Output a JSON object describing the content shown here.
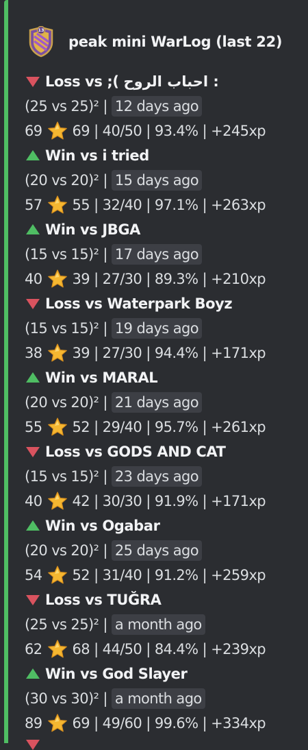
{
  "embed": {
    "accent_color": "#4fbd63",
    "title": "peak mini WarLog (last 22)",
    "badge_icon": "clan-badge-icon",
    "badge_level": "13"
  },
  "colors": {
    "loss": "#d9535f",
    "win": "#4fbd63",
    "time_bg": "#3d3f45",
    "text": "#dbdee1"
  },
  "wars": [
    {
      "result": "loss",
      "headline": "Loss vs ;( احباب الروح :",
      "size": "(25 vs 25)²",
      "sep": "|",
      "time": "12 days ago",
      "left_stars": "69",
      "right": "69 | 40/50 | 93.4% | +245xp"
    },
    {
      "result": "win",
      "headline": "Win vs i tried",
      "size": "(20 vs 20)²",
      "sep": "|",
      "time": "15 days ago",
      "left_stars": "57",
      "right": "55 | 32/40 | 97.1% | +263xp"
    },
    {
      "result": "win",
      "headline": "Win vs JBGA",
      "size": "(15 vs 15)²",
      "sep": "|",
      "time": "17 days ago",
      "left_stars": "40",
      "right": "39 | 27/30 | 89.3% | +210xp"
    },
    {
      "result": "loss",
      "headline": "Loss vs Waterpark Boyz",
      "size": "(15 vs 15)²",
      "sep": "|",
      "time": "19 days ago",
      "left_stars": "38",
      "right": "39 | 27/30 | 94.4% | +171xp"
    },
    {
      "result": "win",
      "headline": "Win vs MARAL",
      "size": "(20 vs 20)²",
      "sep": "|",
      "time": "21 days ago",
      "left_stars": "55",
      "right": "52 | 29/40 | 95.7% | +261xp"
    },
    {
      "result": "loss",
      "headline": "Loss vs GODS AND CAT",
      "size": "(15 vs 15)²",
      "sep": "|",
      "time": "23 days ago",
      "left_stars": "40",
      "right": "42 | 30/30 | 91.9% | +171xp"
    },
    {
      "result": "win",
      "headline": "Win vs Ogabar",
      "size": "(20 vs 20)²",
      "sep": "|",
      "time": "25 days ago",
      "left_stars": "54",
      "right": "52 | 31/40 | 91.2% | +259xp"
    },
    {
      "result": "loss",
      "headline": "Loss vs TUĞRA",
      "size": "(25 vs 25)²",
      "sep": "|",
      "time": "a month ago",
      "left_stars": "62",
      "right": "68 | 44/50 | 84.4% | +239xp"
    },
    {
      "result": "win",
      "headline": "Win vs God Slayer",
      "size": "(30 vs 30)²",
      "sep": "|",
      "time": "a month ago",
      "left_stars": "89",
      "right": "69 | 49/60 | 99.6% | +334xp"
    }
  ]
}
